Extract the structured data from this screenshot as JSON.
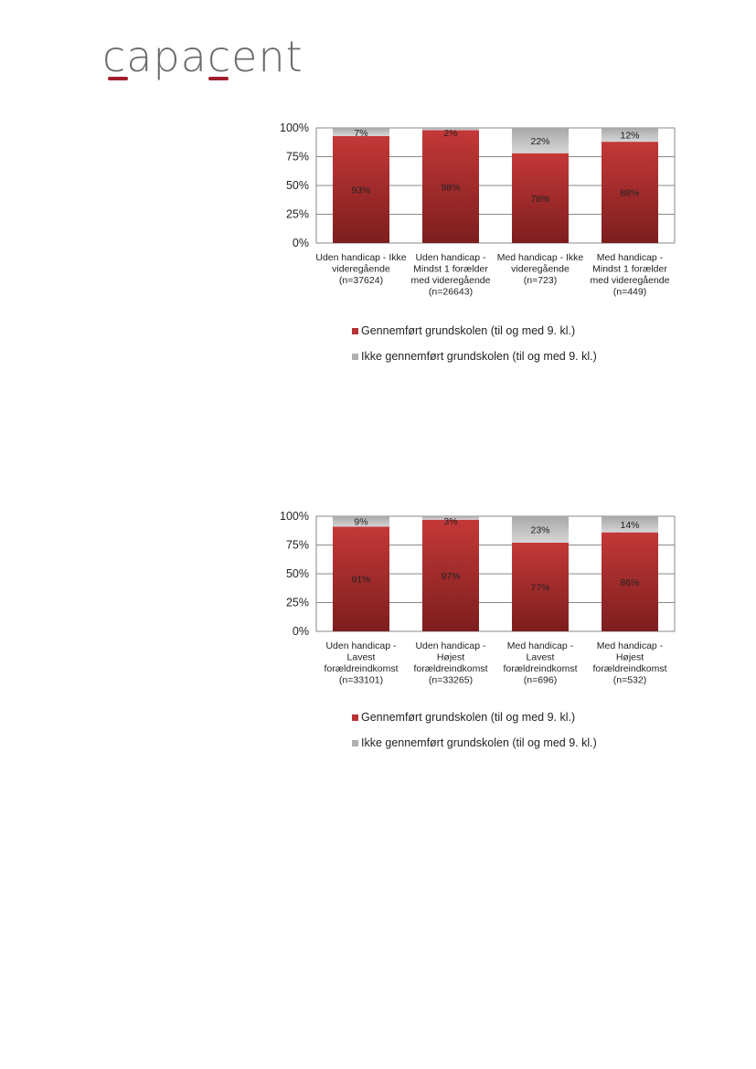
{
  "logo": {
    "text": "capacent",
    "accent_color": "#a11d2b"
  },
  "chart_data": [
    {
      "type": "bar",
      "stacked": true,
      "title": "",
      "xlabel": "",
      "ylabel": "",
      "ylim": [
        0,
        100
      ],
      "yticks": [
        "0%",
        "25%",
        "50%",
        "75%",
        "100%"
      ],
      "categories": [
        [
          "Uden handicap - Ikke",
          "videregående",
          "(n=37624)"
        ],
        [
          "Uden handicap -",
          "Mindst 1 forælder",
          "med videregående",
          "(n=26643)"
        ],
        [
          "Med handicap - Ikke",
          "videregående",
          "(n=723)"
        ],
        [
          "Med handicap -",
          "Mindst 1 forælder",
          "med videregående",
          "(n=449)"
        ]
      ],
      "series": [
        {
          "name": "Gennemført grundskolen (til og med 9. kl.)",
          "values": [
            93,
            98,
            78,
            88
          ],
          "labels": [
            "93%",
            "98%",
            "78%",
            "88%"
          ],
          "color": "#b83232"
        },
        {
          "name": "Ikke gennemført grundskolen  (til og med 9. kl.)",
          "values": [
            7,
            2,
            22,
            12
          ],
          "labels": [
            "7%",
            "2%",
            "22%",
            "12%"
          ],
          "color": "#c4c4c4"
        }
      ],
      "grid": true,
      "legend_position": "bottom"
    },
    {
      "type": "bar",
      "stacked": true,
      "title": "",
      "xlabel": "",
      "ylabel": "",
      "ylim": [
        0,
        100
      ],
      "yticks": [
        "0%",
        "25%",
        "50%",
        "75%",
        "100%"
      ],
      "categories": [
        [
          "Uden handicap -",
          "Lavest",
          "forældreindkomst",
          "(n=33101)"
        ],
        [
          "Uden handicap -",
          "Højest",
          "forældreindkomst",
          "(n=33265)"
        ],
        [
          "Med handicap -",
          "Lavest",
          "forældreindkomst",
          "(n=696)"
        ],
        [
          "Med handicap -",
          "Højest",
          "forældreindkomst",
          "(n=532)"
        ]
      ],
      "series": [
        {
          "name": "Gennemført grundskolen (til og med 9. kl.)",
          "values": [
            91,
            97,
            77,
            86
          ],
          "labels": [
            "91%",
            "97%",
            "77%",
            "86%"
          ],
          "color": "#b83232"
        },
        {
          "name": "Ikke gennemført grundskolen  (til og med 9. kl.)",
          "values": [
            9,
            3,
            23,
            14
          ],
          "labels": [
            "9%",
            "3%",
            "23%",
            "14%"
          ],
          "color": "#c4c4c4"
        }
      ],
      "grid": true,
      "legend_position": "bottom"
    }
  ]
}
